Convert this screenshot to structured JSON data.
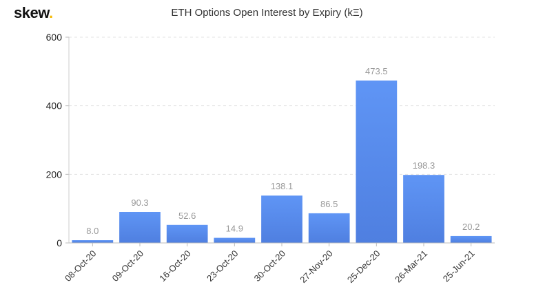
{
  "logo": {
    "text": "skew",
    "dot": "."
  },
  "chart_data": {
    "type": "bar",
    "title": "ETH Options Open Interest by Expiry (kΞ)",
    "xlabel": "",
    "ylabel": "",
    "categories": [
      "08-Oct-20",
      "09-Oct-20",
      "16-Oct-20",
      "23-Oct-20",
      "30-Oct-20",
      "27-Nov-20",
      "25-Dec-20",
      "26-Mar-21",
      "25-Jun-21"
    ],
    "values": [
      8.0,
      90.3,
      52.6,
      14.9,
      138.1,
      86.5,
      473.5,
      198.3,
      20.2
    ],
    "data_labels": [
      "8.0",
      "90.3",
      "52.6",
      "14.9",
      "138.1",
      "86.5",
      "473.5",
      "198.3",
      "20.2"
    ],
    "ylim": [
      0,
      600
    ],
    "yticks": [
      0,
      200,
      400,
      600
    ],
    "ytick_labels": [
      "0",
      "200",
      "400",
      "600"
    ],
    "grid": true,
    "bar_color": "#5b8def"
  }
}
